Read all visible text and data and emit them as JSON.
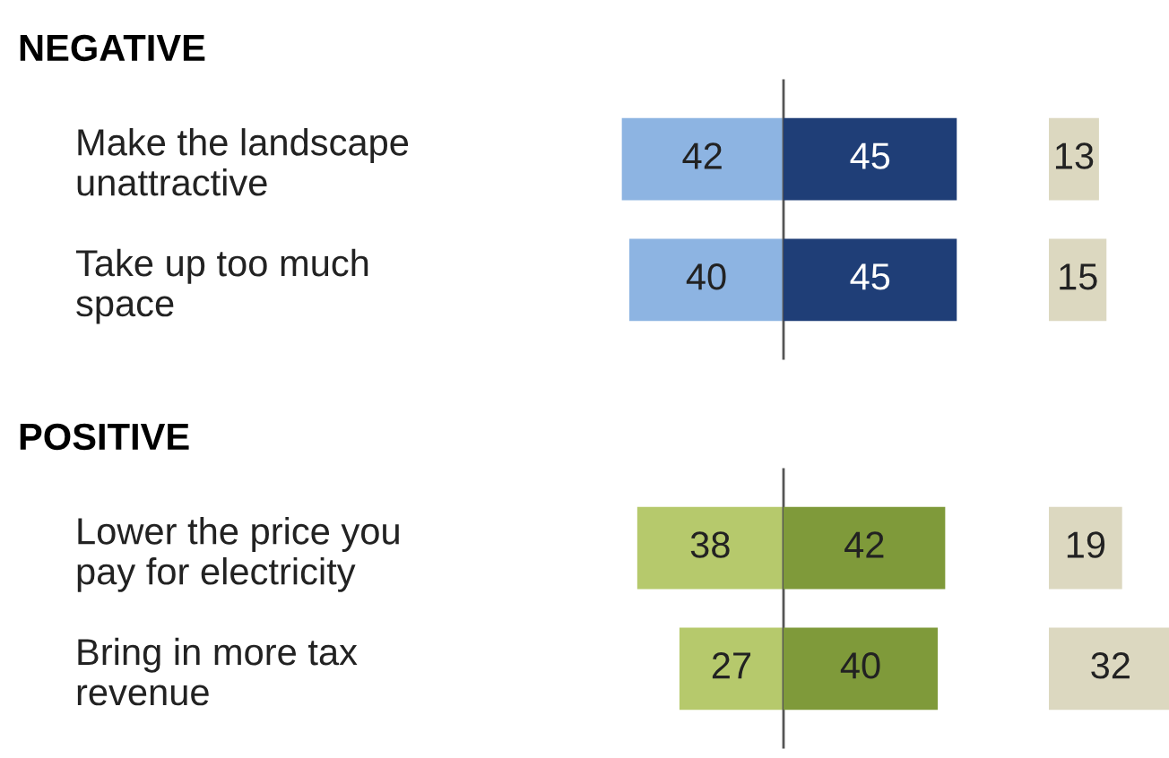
{
  "chart_data": [
    {
      "type": "bar",
      "orientation": "horizontal",
      "title": "NEGATIVE",
      "categories": [
        "Make the landscape\nunattractive",
        "Take up too much\nspace"
      ],
      "xlim": [
        42,
        0
      ],
      "tick_labels": "y",
      "data_labels": true,
      "series": [
        {
          "color": "#8db4e2",
          "values": [
            42,
            40
          ]
        }
      ],
      "ref_lines": [
        {
          "axis": "x",
          "value": 0,
          "color": "#555555"
        }
      ]
    },
    {
      "type": "bar",
      "orientation": "horizontal",
      "categories": [
        null,
        null
      ],
      "tick_labels": false,
      "data_labels": true,
      "series": [
        {
          "color": "#1f3e77",
          "values": [
            45,
            45
          ]
        }
      ]
    },
    {
      "type": "bar",
      "orientation": "horizontal",
      "categories": [
        null,
        null
      ],
      "tick_labels": false,
      "data_labels": true,
      "series": [
        {
          "color": "#dcd8c0",
          "values": [
            13,
            15
          ]
        }
      ]
    },
    {
      "type": "bar",
      "orientation": "horizontal",
      "title": "POSITIVE",
      "categories": [
        "Lower the price you\npay for electricity",
        "Bring in more tax\nrevenue"
      ],
      "xlim": [
        38,
        0
      ],
      "tick_labels": "y",
      "data_labels": true,
      "series": [
        {
          "color": "#b6c96c",
          "values": [
            38,
            27
          ]
        }
      ],
      "ref_lines": [
        {
          "axis": "x",
          "value": 0,
          "color": "#555555"
        }
      ]
    },
    {
      "type": "bar",
      "orientation": "horizontal",
      "categories": [
        null,
        null
      ],
      "tick_labels": false,
      "data_labels": true,
      "series": [
        {
          "color": "#7f9a3a",
          "values": [
            42,
            40
          ]
        }
      ]
    },
    {
      "type": "bar",
      "orientation": "horizontal",
      "categories": [
        null,
        null
      ],
      "tick_labels": false,
      "data_labels": true,
      "series": [
        {
          "color": "#dcd8c0",
          "values": [
            19,
            32
          ]
        }
      ]
    }
  ]
}
